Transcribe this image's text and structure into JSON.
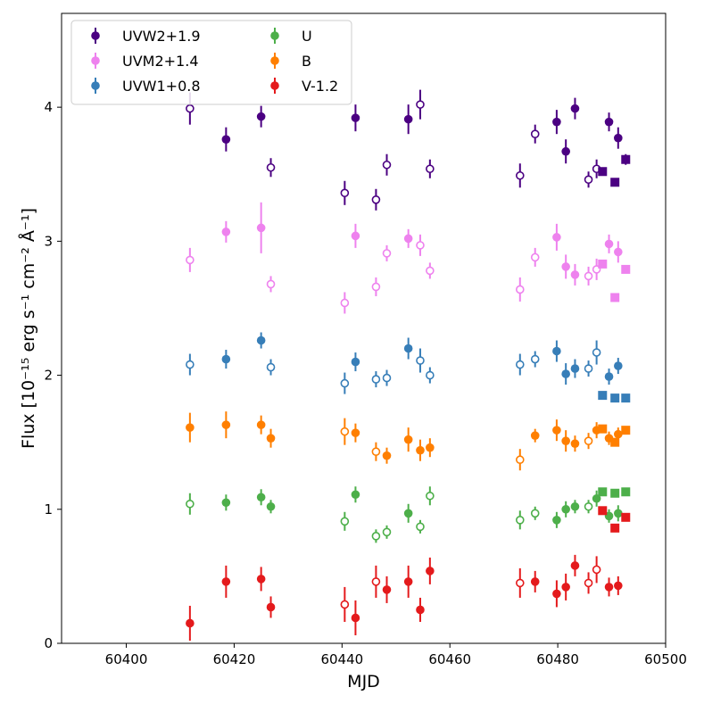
{
  "chart_data": {
    "type": "scatter",
    "xlabel": "MJD",
    "ylabel": "Flux [10⁻¹⁵ erg s⁻¹ cm⁻² Å⁻¹]",
    "xlim": [
      60388,
      60500
    ],
    "ylim": [
      0,
      4.7
    ],
    "xticks": [
      60400,
      60420,
      60440,
      60460,
      60480,
      60500
    ],
    "xtick_labels": [
      "60400",
      "60420",
      "60440",
      "60460",
      "60480",
      "60500"
    ],
    "yticks": [
      0,
      1,
      2,
      3,
      4
    ],
    "ytick_labels": [
      "0",
      "1",
      "2",
      "3",
      "4"
    ],
    "legend_position": "top-left",
    "legend_columns": 2,
    "series": [
      {
        "name": "UVW2+1.9",
        "color": "#4b0082",
        "points": [
          {
            "x": 60411.8,
            "y": 3.99,
            "err": 0.12,
            "marker": "open"
          },
          {
            "x": 60418.5,
            "y": 3.76,
            "err": 0.09,
            "marker": "filled"
          },
          {
            "x": 60425.0,
            "y": 3.93,
            "err": 0.08,
            "marker": "filled"
          },
          {
            "x": 60426.8,
            "y": 3.55,
            "err": 0.07,
            "marker": "open"
          },
          {
            "x": 60440.5,
            "y": 3.36,
            "err": 0.09,
            "marker": "open"
          },
          {
            "x": 60442.5,
            "y": 3.92,
            "err": 0.1,
            "marker": "filled"
          },
          {
            "x": 60446.3,
            "y": 3.31,
            "err": 0.08,
            "marker": "open"
          },
          {
            "x": 60448.3,
            "y": 3.57,
            "err": 0.08,
            "marker": "open"
          },
          {
            "x": 60452.3,
            "y": 3.91,
            "err": 0.11,
            "marker": "filled"
          },
          {
            "x": 60454.5,
            "y": 4.02,
            "err": 0.11,
            "marker": "open"
          },
          {
            "x": 60456.3,
            "y": 3.54,
            "err": 0.07,
            "marker": "open"
          },
          {
            "x": 60473.0,
            "y": 3.49,
            "err": 0.09,
            "marker": "open"
          },
          {
            "x": 60475.8,
            "y": 3.8,
            "err": 0.07,
            "marker": "open"
          },
          {
            "x": 60479.8,
            "y": 3.89,
            "err": 0.09,
            "marker": "filled"
          },
          {
            "x": 60481.5,
            "y": 3.67,
            "err": 0.09,
            "marker": "filled"
          },
          {
            "x": 60483.2,
            "y": 3.99,
            "err": 0.08,
            "marker": "filled"
          },
          {
            "x": 60485.7,
            "y": 3.46,
            "err": 0.06,
            "marker": "open"
          },
          {
            "x": 60487.2,
            "y": 3.54,
            "err": 0.07,
            "marker": "open"
          },
          {
            "x": 60489.5,
            "y": 3.89,
            "err": 0.07,
            "marker": "filled"
          },
          {
            "x": 60491.2,
            "y": 3.77,
            "err": 0.08,
            "marker": "filled"
          },
          {
            "x": 60488.3,
            "y": 3.52,
            "err": 0.0,
            "marker": "square"
          },
          {
            "x": 60490.6,
            "y": 3.44,
            "err": 0.0,
            "marker": "square"
          },
          {
            "x": 60492.6,
            "y": 3.61,
            "err": 0.04,
            "marker": "square"
          }
        ]
      },
      {
        "name": "UVM2+1.4",
        "color": "#ee82ee",
        "points": [
          {
            "x": 60411.8,
            "y": 2.86,
            "err": 0.09,
            "marker": "open"
          },
          {
            "x": 60418.5,
            "y": 3.07,
            "err": 0.08,
            "marker": "filled"
          },
          {
            "x": 60425.0,
            "y": 3.1,
            "err": 0.19,
            "marker": "filled"
          },
          {
            "x": 60426.8,
            "y": 2.68,
            "err": 0.06,
            "marker": "open"
          },
          {
            "x": 60440.5,
            "y": 2.54,
            "err": 0.08,
            "marker": "open"
          },
          {
            "x": 60442.5,
            "y": 3.04,
            "err": 0.09,
            "marker": "filled"
          },
          {
            "x": 60446.3,
            "y": 2.66,
            "err": 0.07,
            "marker": "open"
          },
          {
            "x": 60448.3,
            "y": 2.91,
            "err": 0.06,
            "marker": "open"
          },
          {
            "x": 60452.3,
            "y": 3.02,
            "err": 0.07,
            "marker": "filled"
          },
          {
            "x": 60454.5,
            "y": 2.97,
            "err": 0.08,
            "marker": "open"
          },
          {
            "x": 60456.3,
            "y": 2.78,
            "err": 0.06,
            "marker": "open"
          },
          {
            "x": 60473.0,
            "y": 2.64,
            "err": 0.09,
            "marker": "open"
          },
          {
            "x": 60475.8,
            "y": 2.88,
            "err": 0.07,
            "marker": "open"
          },
          {
            "x": 60479.8,
            "y": 3.03,
            "err": 0.1,
            "marker": "filled"
          },
          {
            "x": 60481.5,
            "y": 2.81,
            "err": 0.09,
            "marker": "filled"
          },
          {
            "x": 60483.2,
            "y": 2.75,
            "err": 0.08,
            "marker": "filled"
          },
          {
            "x": 60485.7,
            "y": 2.74,
            "err": 0.07,
            "marker": "open"
          },
          {
            "x": 60487.2,
            "y": 2.79,
            "err": 0.08,
            "marker": "open"
          },
          {
            "x": 60489.5,
            "y": 2.98,
            "err": 0.07,
            "marker": "filled"
          },
          {
            "x": 60491.2,
            "y": 2.92,
            "err": 0.08,
            "marker": "filled"
          },
          {
            "x": 60488.3,
            "y": 2.83,
            "err": 0.0,
            "marker": "square"
          },
          {
            "x": 60490.6,
            "y": 2.58,
            "err": 0.0,
            "marker": "square"
          },
          {
            "x": 60492.6,
            "y": 2.79,
            "err": 0.0,
            "marker": "square"
          }
        ]
      },
      {
        "name": "UVW1+0.8",
        "color": "#377eb8",
        "points": [
          {
            "x": 60411.8,
            "y": 2.08,
            "err": 0.08,
            "marker": "open"
          },
          {
            "x": 60418.5,
            "y": 2.12,
            "err": 0.07,
            "marker": "filled"
          },
          {
            "x": 60425.0,
            "y": 2.26,
            "err": 0.06,
            "marker": "filled"
          },
          {
            "x": 60426.8,
            "y": 2.06,
            "err": 0.06,
            "marker": "open"
          },
          {
            "x": 60440.5,
            "y": 1.94,
            "err": 0.08,
            "marker": "open"
          },
          {
            "x": 60442.5,
            "y": 2.1,
            "err": 0.07,
            "marker": "filled"
          },
          {
            "x": 60446.3,
            "y": 1.97,
            "err": 0.06,
            "marker": "open"
          },
          {
            "x": 60448.3,
            "y": 1.98,
            "err": 0.06,
            "marker": "open"
          },
          {
            "x": 60452.3,
            "y": 2.2,
            "err": 0.08,
            "marker": "filled"
          },
          {
            "x": 60454.5,
            "y": 2.11,
            "err": 0.09,
            "marker": "open"
          },
          {
            "x": 60456.3,
            "y": 2.0,
            "err": 0.06,
            "marker": "open"
          },
          {
            "x": 60473.0,
            "y": 2.08,
            "err": 0.08,
            "marker": "open"
          },
          {
            "x": 60475.8,
            "y": 2.12,
            "err": 0.06,
            "marker": "open"
          },
          {
            "x": 60479.8,
            "y": 2.18,
            "err": 0.08,
            "marker": "filled"
          },
          {
            "x": 60481.5,
            "y": 2.01,
            "err": 0.08,
            "marker": "filled"
          },
          {
            "x": 60483.2,
            "y": 2.05,
            "err": 0.07,
            "marker": "filled"
          },
          {
            "x": 60485.7,
            "y": 2.05,
            "err": 0.06,
            "marker": "open"
          },
          {
            "x": 60487.2,
            "y": 2.17,
            "err": 0.09,
            "marker": "open"
          },
          {
            "x": 60489.5,
            "y": 1.99,
            "err": 0.06,
            "marker": "filled"
          },
          {
            "x": 60491.2,
            "y": 2.07,
            "err": 0.06,
            "marker": "filled"
          },
          {
            "x": 60488.3,
            "y": 1.85,
            "err": 0.0,
            "marker": "square"
          },
          {
            "x": 60490.6,
            "y": 1.83,
            "err": 0.0,
            "marker": "square"
          },
          {
            "x": 60492.6,
            "y": 1.83,
            "err": 0.0,
            "marker": "square"
          }
        ]
      },
      {
        "name": "U",
        "color": "#4daf4a",
        "points": [
          {
            "x": 60411.8,
            "y": 1.04,
            "err": 0.08,
            "marker": "open"
          },
          {
            "x": 60418.5,
            "y": 1.05,
            "err": 0.06,
            "marker": "filled"
          },
          {
            "x": 60425.0,
            "y": 1.09,
            "err": 0.06,
            "marker": "filled"
          },
          {
            "x": 60426.8,
            "y": 1.02,
            "err": 0.05,
            "marker": "filled"
          },
          {
            "x": 60440.5,
            "y": 0.91,
            "err": 0.07,
            "marker": "open"
          },
          {
            "x": 60442.5,
            "y": 1.11,
            "err": 0.06,
            "marker": "filled"
          },
          {
            "x": 60446.3,
            "y": 0.8,
            "err": 0.05,
            "marker": "open"
          },
          {
            "x": 60448.3,
            "y": 0.83,
            "err": 0.05,
            "marker": "open"
          },
          {
            "x": 60452.3,
            "y": 0.97,
            "err": 0.07,
            "marker": "filled"
          },
          {
            "x": 60454.5,
            "y": 0.87,
            "err": 0.05,
            "marker": "open"
          },
          {
            "x": 60456.3,
            "y": 1.1,
            "err": 0.07,
            "marker": "open"
          },
          {
            "x": 60473.0,
            "y": 0.92,
            "err": 0.07,
            "marker": "open"
          },
          {
            "x": 60475.8,
            "y": 0.97,
            "err": 0.05,
            "marker": "open"
          },
          {
            "x": 60479.8,
            "y": 0.92,
            "err": 0.06,
            "marker": "filled"
          },
          {
            "x": 60481.5,
            "y": 1.0,
            "err": 0.06,
            "marker": "filled"
          },
          {
            "x": 60483.2,
            "y": 1.02,
            "err": 0.05,
            "marker": "filled"
          },
          {
            "x": 60485.7,
            "y": 1.02,
            "err": 0.05,
            "marker": "open"
          },
          {
            "x": 60487.2,
            "y": 1.08,
            "err": 0.06,
            "marker": "filled"
          },
          {
            "x": 60489.5,
            "y": 0.95,
            "err": 0.05,
            "marker": "filled"
          },
          {
            "x": 60491.2,
            "y": 0.97,
            "err": 0.06,
            "marker": "filled"
          },
          {
            "x": 60488.3,
            "y": 1.13,
            "err": 0.0,
            "marker": "square"
          },
          {
            "x": 60490.6,
            "y": 1.12,
            "err": 0.0,
            "marker": "square"
          },
          {
            "x": 60492.6,
            "y": 1.13,
            "err": 0.0,
            "marker": "square"
          }
        ]
      },
      {
        "name": "B",
        "color": "#ff7f00",
        "points": [
          {
            "x": 60411.8,
            "y": 1.61,
            "err": 0.11,
            "marker": "filled"
          },
          {
            "x": 60418.5,
            "y": 1.63,
            "err": 0.1,
            "marker": "filled"
          },
          {
            "x": 60425.0,
            "y": 1.63,
            "err": 0.07,
            "marker": "filled"
          },
          {
            "x": 60426.8,
            "y": 1.53,
            "err": 0.07,
            "marker": "filled"
          },
          {
            "x": 60440.5,
            "y": 1.58,
            "err": 0.1,
            "marker": "open"
          },
          {
            "x": 60442.5,
            "y": 1.57,
            "err": 0.07,
            "marker": "filled"
          },
          {
            "x": 60446.3,
            "y": 1.43,
            "err": 0.07,
            "marker": "open"
          },
          {
            "x": 60448.3,
            "y": 1.4,
            "err": 0.06,
            "marker": "filled"
          },
          {
            "x": 60452.3,
            "y": 1.52,
            "err": 0.09,
            "marker": "filled"
          },
          {
            "x": 60454.5,
            "y": 1.44,
            "err": 0.08,
            "marker": "filled"
          },
          {
            "x": 60456.3,
            "y": 1.46,
            "err": 0.07,
            "marker": "filled"
          },
          {
            "x": 60473.0,
            "y": 1.37,
            "err": 0.08,
            "marker": "open"
          },
          {
            "x": 60475.8,
            "y": 1.55,
            "err": 0.05,
            "marker": "filled"
          },
          {
            "x": 60479.8,
            "y": 1.59,
            "err": 0.08,
            "marker": "filled"
          },
          {
            "x": 60481.5,
            "y": 1.51,
            "err": 0.08,
            "marker": "filled"
          },
          {
            "x": 60483.2,
            "y": 1.49,
            "err": 0.06,
            "marker": "filled"
          },
          {
            "x": 60485.7,
            "y": 1.51,
            "err": 0.06,
            "marker": "open"
          },
          {
            "x": 60487.2,
            "y": 1.59,
            "err": 0.06,
            "marker": "filled"
          },
          {
            "x": 60489.5,
            "y": 1.53,
            "err": 0.05,
            "marker": "filled"
          },
          {
            "x": 60491.2,
            "y": 1.56,
            "err": 0.05,
            "marker": "filled"
          },
          {
            "x": 60488.3,
            "y": 1.6,
            "err": 0.0,
            "marker": "square"
          },
          {
            "x": 60490.6,
            "y": 1.5,
            "err": 0.0,
            "marker": "square"
          },
          {
            "x": 60492.6,
            "y": 1.59,
            "err": 0.0,
            "marker": "square"
          }
        ]
      },
      {
        "name": "V-1.2",
        "color": "#e41a1c",
        "points": [
          {
            "x": 60411.8,
            "y": 0.15,
            "err": 0.13,
            "marker": "filled"
          },
          {
            "x": 60418.5,
            "y": 0.46,
            "err": 0.12,
            "marker": "filled"
          },
          {
            "x": 60425.0,
            "y": 0.48,
            "err": 0.09,
            "marker": "filled"
          },
          {
            "x": 60426.8,
            "y": 0.27,
            "err": 0.08,
            "marker": "filled"
          },
          {
            "x": 60440.5,
            "y": 0.29,
            "err": 0.13,
            "marker": "open"
          },
          {
            "x": 60442.5,
            "y": 0.19,
            "err": 0.13,
            "marker": "filled"
          },
          {
            "x": 60446.3,
            "y": 0.46,
            "err": 0.12,
            "marker": "open"
          },
          {
            "x": 60448.3,
            "y": 0.4,
            "err": 0.1,
            "marker": "filled"
          },
          {
            "x": 60452.3,
            "y": 0.46,
            "err": 0.12,
            "marker": "filled"
          },
          {
            "x": 60454.5,
            "y": 0.25,
            "err": 0.09,
            "marker": "filled"
          },
          {
            "x": 60456.3,
            "y": 0.54,
            "err": 0.1,
            "marker": "filled"
          },
          {
            "x": 60473.0,
            "y": 0.45,
            "err": 0.11,
            "marker": "open"
          },
          {
            "x": 60475.8,
            "y": 0.46,
            "err": 0.08,
            "marker": "filled"
          },
          {
            "x": 60479.8,
            "y": 0.37,
            "err": 0.1,
            "marker": "filled"
          },
          {
            "x": 60481.5,
            "y": 0.42,
            "err": 0.1,
            "marker": "filled"
          },
          {
            "x": 60483.2,
            "y": 0.58,
            "err": 0.08,
            "marker": "filled"
          },
          {
            "x": 60485.7,
            "y": 0.45,
            "err": 0.08,
            "marker": "open"
          },
          {
            "x": 60487.2,
            "y": 0.55,
            "err": 0.1,
            "marker": "open"
          },
          {
            "x": 60489.5,
            "y": 0.42,
            "err": 0.07,
            "marker": "filled"
          },
          {
            "x": 60491.2,
            "y": 0.43,
            "err": 0.07,
            "marker": "filled"
          },
          {
            "x": 60488.3,
            "y": 0.99,
            "err": 0.0,
            "marker": "square"
          },
          {
            "x": 60490.6,
            "y": 0.86,
            "err": 0.0,
            "marker": "square"
          },
          {
            "x": 60492.6,
            "y": 0.94,
            "err": 0.0,
            "marker": "square"
          }
        ]
      }
    ]
  }
}
